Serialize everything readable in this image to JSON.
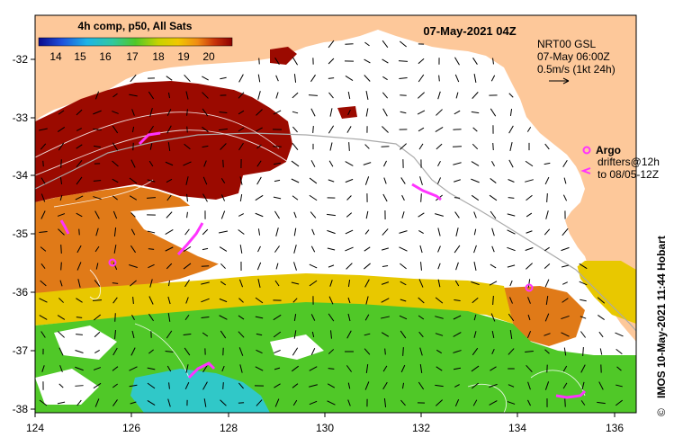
{
  "title": "07-May-2021 04Z",
  "colorbar": {
    "label": "4h comp, p50, All Sats",
    "ticks": [
      "14",
      "15",
      "16",
      "17",
      "18",
      "19",
      "20"
    ]
  },
  "axes": {
    "x_ticks": [
      "124",
      "126",
      "128",
      "130",
      "132",
      "134",
      "136"
    ],
    "y_ticks": [
      "-32",
      "-33",
      "-34",
      "-35",
      "-36",
      "-37",
      "-38"
    ]
  },
  "current_legend": {
    "line1": "NRT00 GSL",
    "line2": "07-May 06:00Z",
    "line3": "0.5m/s (1kt 24h)"
  },
  "argo_legend": {
    "label": "Argo",
    "drifters_line1": "drifters@12h",
    "drifters_line2": "to 08/05-12Z"
  },
  "credit": "IMOS 10-May-2021 11:44 Hobart",
  "copyright_symbol": "©",
  "colors": {
    "land": "#fdc89a",
    "warm": "#9b0a00",
    "orange": "#e07a18",
    "yellow": "#e8c800",
    "green": "#50c828",
    "cyan": "#30c8c8",
    "argo": "#ff33ff"
  }
}
